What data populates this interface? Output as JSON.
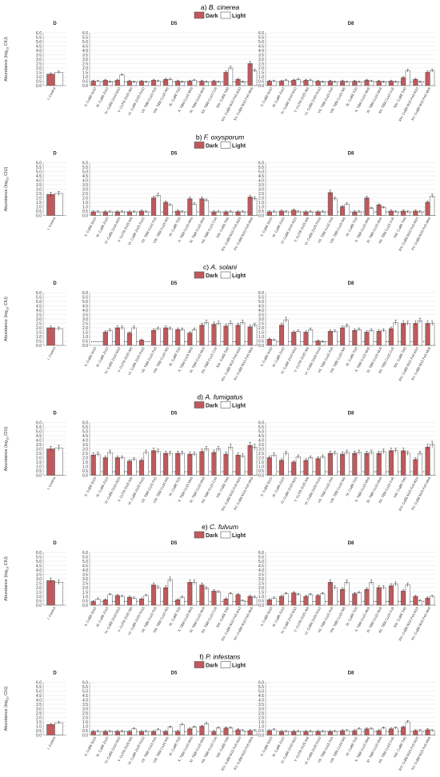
{
  "legend": {
    "dark": "Dark",
    "light": "Light"
  },
  "colors": {
    "dark": "#c0595c",
    "light": "#ffffff",
    "stroke": "#555555",
    "grid": "#e3e3e3",
    "axis": "#8a8a8a",
    "text": "#333333",
    "baseline": "#000000"
  },
  "y_axis": {
    "label_prefix": "Abundance (log",
    "label_sub": "10",
    "label_suffix": " CIU)",
    "ticks": [
      "0.0",
      "0.5",
      "1.0",
      "1.5",
      "2.0",
      "2.5",
      "3.0",
      "3.5",
      "4.0",
      "4.5",
      "5.0",
      "5.5",
      "6.0"
    ]
  },
  "panel_titles": {
    "control": "D",
    "d5": "D5",
    "d8": "D8"
  },
  "control_category": "I. Control",
  "categories": [
    "II. CuB8 Sn10",
    "III. CuB8 Zn10",
    "IV. CuB8 Zn10 Al10",
    "V. CuTi9 Zn25 Ni6",
    "VI. CuB8 Zn25 Fe10",
    "VII. TiB8 Cu15 Fe5",
    "VIII. TiB8 Cu15 Ni5",
    "IX. CuB8 Ti20",
    "X. TiB8 Cu15 Mn5",
    "XI. TiB8 Cu15 Mo5",
    "XII. TiB8 Cu15 Co5",
    "XIII. CuB8 Ti40",
    "XIV. CuB8 Ni15 Fe5 Al10",
    "XV. CuB8 Ni15 Fe5 Mn5"
  ],
  "chart_data": [
    {
      "type": "bar",
      "title_letter": "a)",
      "title_species": "B. cinerea",
      "ylim": [
        0,
        6
      ],
      "control": {
        "dark": 1.3,
        "light": 1.5
      },
      "d5": {
        "dark": [
          0.5,
          0.6,
          0.6,
          0.5,
          0.5,
          0.6,
          0.7,
          0.5,
          0.5,
          0.5,
          0.5,
          1.5,
          0.7,
          2.5
        ],
        "light": [
          0.5,
          0.4,
          1.2,
          0.4,
          0.4,
          0.5,
          0.7,
          0.4,
          0.6,
          0.4,
          0.4,
          2.0,
          0.4,
          1.7
        ]
      },
      "d8": {
        "dark": [
          0.5,
          0.5,
          0.6,
          0.6,
          0.5,
          0.5,
          0.5,
          0.5,
          0.6,
          0.5,
          0.5,
          0.9,
          0.7,
          1.5
        ],
        "light": [
          0.5,
          0.6,
          0.7,
          0.6,
          0.4,
          0.4,
          0.4,
          0.4,
          0.5,
          0.4,
          0.4,
          1.7,
          0.4,
          1.7
        ]
      }
    },
    {
      "type": "bar",
      "title_letter": "b)",
      "title_species": "F. oxysporum",
      "ylim": [
        0,
        6
      ],
      "control": {
        "dark": 2.4,
        "light": 2.5
      },
      "d5": {
        "dark": [
          0.4,
          0.4,
          0.4,
          0.4,
          0.5,
          2.0,
          1.5,
          0.5,
          1.9,
          1.9,
          0.4,
          0.4,
          0.4,
          2.1
        ],
        "light": [
          0.4,
          0.4,
          0.4,
          0.4,
          0.4,
          2.3,
          1.2,
          0.4,
          1.3,
          1.7,
          0.4,
          0.4,
          0.4,
          1.9
        ]
      },
      "d8": {
        "dark": [
          0.4,
          0.5,
          0.6,
          0.4,
          0.4,
          2.6,
          1.0,
          0.4,
          2.0,
          1.2,
          0.5,
          0.5,
          0.5,
          1.5
        ],
        "light": [
          0.4,
          0.4,
          0.4,
          0.4,
          0.4,
          1.9,
          1.3,
          0.4,
          0.8,
          0.9,
          0.4,
          0.4,
          0.4,
          2.2
        ]
      }
    },
    {
      "type": "bar",
      "title_letter": "c)",
      "title_species": "A. solani",
      "ylim": [
        0,
        6
      ],
      "control": {
        "dark": 2.0,
        "light": 1.9
      },
      "d5": {
        "dark": [
          0.0,
          1.5,
          2.0,
          1.4,
          0.6,
          1.7,
          2.0,
          1.8,
          1.4,
          2.3,
          2.4,
          2.2,
          2.3,
          2.1
        ],
        "light": [
          0.0,
          1.7,
          2.0,
          2.0,
          0.0,
          1.9,
          1.9,
          1.8,
          1.8,
          2.6,
          2.5,
          2.5,
          2.6,
          2.3
        ]
      },
      "d8": {
        "dark": [
          0.7,
          2.3,
          1.5,
          1.5,
          0.5,
          1.6,
          2.0,
          1.7,
          1.5,
          1.6,
          1.9,
          2.5,
          2.5,
          2.5
        ],
        "light": [
          0.6,
          2.9,
          1.6,
          1.8,
          0.4,
          1.6,
          2.2,
          1.8,
          1.7,
          1.7,
          2.6,
          2.5,
          2.8,
          2.5
        ]
      }
    },
    {
      "type": "bar",
      "title_letter": "d)",
      "title_species": "A. fumigatus",
      "ylim": [
        0,
        6
      ],
      "control": {
        "dark": 3.0,
        "light": 3.1
      },
      "d5": {
        "dark": [
          2.3,
          2.0,
          2.0,
          1.6,
          1.7,
          2.8,
          2.5,
          2.5,
          2.4,
          2.7,
          2.6,
          2.4,
          2.3,
          3.4
        ],
        "light": [
          2.4,
          2.6,
          2.0,
          1.8,
          2.6,
          2.7,
          2.5,
          2.5,
          2.4,
          3.0,
          3.0,
          3.2,
          2.2,
          3.2
        ]
      },
      "d8": {
        "dark": [
          2.0,
          1.7,
          1.5,
          1.7,
          1.9,
          2.5,
          2.4,
          2.5,
          2.5,
          2.5,
          2.8,
          2.8,
          1.8,
          3.2
        ],
        "light": [
          2.3,
          2.5,
          2.1,
          2.0,
          2.1,
          2.5,
          2.6,
          2.6,
          2.6,
          2.7,
          2.8,
          2.5,
          2.5,
          3.5
        ]
      }
    },
    {
      "type": "bar",
      "title_letter": "e)",
      "title_species": "C. fulvum",
      "ylim": [
        0,
        6
      ],
      "control": {
        "dark": 2.8,
        "light": 2.6
      },
      "d5": {
        "dark": [
          0.4,
          0.6,
          1.1,
          0.9,
          0.7,
          2.3,
          2.0,
          0.6,
          2.6,
          2.3,
          1.6,
          0.7,
          1.2,
          1.0
        ],
        "light": [
          0.7,
          1.2,
          1.0,
          0.8,
          1.1,
          2.0,
          2.9,
          0.9,
          2.6,
          1.9,
          1.5,
          1.3,
          0.5,
          0.9
        ]
      },
      "d8": {
        "dark": [
          0.6,
          1.0,
          1.4,
          1.0,
          1.1,
          2.6,
          1.8,
          1.3,
          1.8,
          2.0,
          2.2,
          1.6,
          1.0,
          0.8
        ],
        "light": [
          0.8,
          1.3,
          1.2,
          1.2,
          1.3,
          2.0,
          2.6,
          1.4,
          2.6,
          2.0,
          2.4,
          2.3,
          0.5,
          1.0
        ]
      }
    },
    {
      "type": "bar",
      "title_letter": "f)",
      "title_species": "P. infestans",
      "ylim": [
        0,
        6
      ],
      "control": {
        "dark": 1.2,
        "light": 1.4
      },
      "d5": {
        "dark": [
          0.4,
          0.4,
          0.4,
          0.4,
          0.4,
          0.4,
          0.4,
          0.4,
          0.7,
          1.0,
          0.4,
          0.8,
          0.6,
          0.5
        ],
        "light": [
          0.4,
          0.4,
          0.4,
          0.7,
          0.4,
          0.6,
          0.9,
          1.2,
          0.9,
          1.3,
          0.8,
          0.8,
          0.5,
          0.5
        ]
      },
      "d8": {
        "dark": [
          0.5,
          0.4,
          0.4,
          0.4,
          0.4,
          0.4,
          0.5,
          0.5,
          0.7,
          0.5,
          0.7,
          0.9,
          0.5,
          0.6
        ],
        "light": [
          0.6,
          0.4,
          0.4,
          0.4,
          0.4,
          0.4,
          0.5,
          0.7,
          0.7,
          0.8,
          0.8,
          1.5,
          0.5,
          0.5
        ]
      }
    }
  ]
}
